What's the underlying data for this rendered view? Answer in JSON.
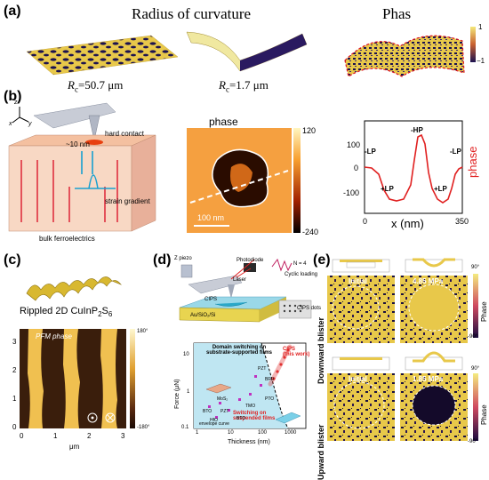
{
  "panels": {
    "a": {
      "label": "(a)",
      "title": "Radius of curvature",
      "title_right": "Phas",
      "rc1_prefix": "R",
      "rc1_sub": "c",
      "rc1_value": "=50.7 μm",
      "rc2_prefix": "R",
      "rc2_sub": "c",
      "rc2_value": "=1.7 μm",
      "colorbar_max": "1",
      "colorbar_min": "−1"
    },
    "b": {
      "label": "(b)",
      "hard_contact": "hard contact",
      "depth": "~10 nm",
      "strain_gradient": "strain gradient",
      "bulk": "bulk ferroelectrics",
      "axis_z": "z",
      "axis_x": "x",
      "axis_y": "y",
      "phase_title": "phase",
      "colorbar_max": "120",
      "colorbar_min": "-240",
      "scalebar": "100 nm",
      "plot": {
        "ylabel": "phase",
        "xlabel": "x (nm)",
        "xticks": [
          "0",
          "350"
        ],
        "yticks": [
          "100",
          "0",
          "-100"
        ],
        "annotations": [
          "-HP",
          "-LP",
          "-LP",
          "+LP",
          "+LP"
        ]
      }
    },
    "c": {
      "label": "(c)",
      "caption_prefix": "Rippled 2D CuInP",
      "caption_sub1": "2",
      "caption_mid": "S",
      "caption_sub2": "6",
      "pfm_label": "PFM phase",
      "colorbar_max": "180°",
      "colorbar_min": "-180°",
      "xticks": [
        "0",
        "1",
        "2",
        "3"
      ],
      "yticks": [
        "3",
        "2",
        "1",
        "0"
      ],
      "xlabel": "μm"
    },
    "d": {
      "label": "(d)",
      "piezo": "Z piezo",
      "photodiode": "Photodiode",
      "laser": "Laser",
      "cips": "CIPS",
      "substrate": "Au/SiO₂/Si",
      "cyclic": "Cyclic loading",
      "n_label": "N = 4",
      "cips_dots": "CIPS dots",
      "plot": {
        "ylabel": "Force (μN)",
        "xlabel": "Thickness (nm)",
        "yticks": [
          "10",
          "1",
          "0.1"
        ],
        "xticks": [
          "1",
          "10",
          "100",
          "1000"
        ],
        "title_line1": "Domain switching on",
        "title_line2": "substrate-supported films",
        "cips_line1": "CIPS",
        "cips_line2": "(this work)",
        "suspended_line1": "Switching on",
        "suspended_line2": "suspended films",
        "envelope": "envelope curve",
        "materials": [
          "PZT",
          "BFO",
          "MoS₂",
          "TMO",
          "PTO",
          "BTO",
          "PZT",
          "HfO",
          "BTO"
        ]
      }
    },
    "e": {
      "label": "(e)",
      "row1_label": "Downward blister",
      "row2_label": "Upward blister",
      "initial1": "Initial",
      "initial2": "Initial",
      "pressure1": "4.85 MPa",
      "pressure2": "1.85 MPa",
      "colorbar_max": "90°",
      "colorbar_min": "-90°",
      "colorbar_label": "Phase"
    }
  }
}
